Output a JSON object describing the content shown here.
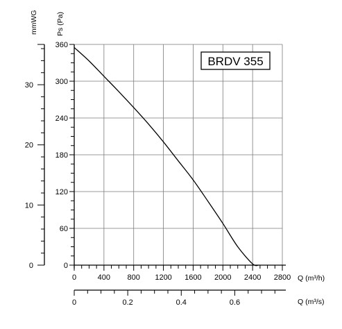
{
  "chart_data": {
    "type": "line",
    "title": "BRDV 355",
    "primary_x_axis": {
      "label": "Q (m³/h)",
      "range": [
        0,
        2800
      ],
      "ticks": [
        "0",
        "400",
        "800",
        "1200",
        "1600",
        "2000",
        "2400",
        "2800"
      ],
      "minor_step": 100
    },
    "secondary_x_axis": {
      "label": "Q (m³/s)",
      "range": [
        0,
        0.7778
      ],
      "ticks": [
        "0",
        "0.2",
        "0.4",
        "0.6"
      ],
      "minor_step": 0.05
    },
    "primary_y_axis": {
      "label": "Ps (Pa)",
      "range": [
        0,
        360
      ],
      "ticks": [
        "0",
        "60",
        "120",
        "180",
        "240",
        "300",
        "360"
      ],
      "minor_step": 15
    },
    "secondary_y_axis": {
      "label": "mmWG",
      "range": [
        0,
        36.7
      ],
      "ticks": [
        "0",
        "10",
        "20",
        "30"
      ],
      "minor_step": 2
    },
    "grid": true,
    "legend_position": "top-right",
    "series": [
      {
        "name": "BRDV 355",
        "x": [
          0,
          200,
          400,
          600,
          800,
          1000,
          1200,
          1400,
          1600,
          1800,
          2000,
          2200,
          2400,
          2480
        ],
        "y": [
          355,
          333,
          308,
          283,
          257,
          230,
          201,
          170,
          139,
          104,
          68,
          30,
          2,
          0
        ]
      }
    ]
  }
}
